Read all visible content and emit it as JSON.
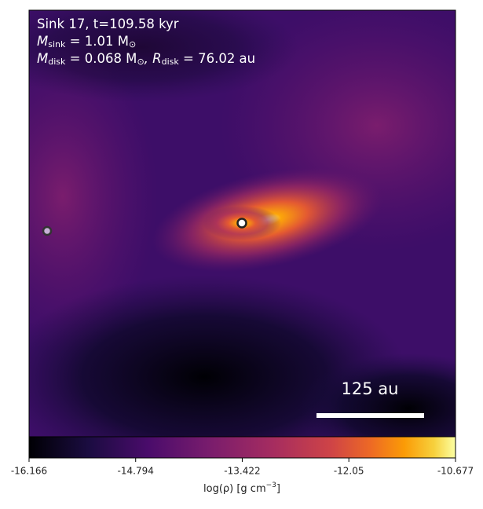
{
  "chart_data": {
    "type": "heatmap",
    "annotation_lines": [
      [
        "Sink 17, t=109.58 kyr"
      ],
      [
        "M",
        "sink",
        " = 1.01 M",
        "⊙"
      ],
      [
        "M",
        "disk",
        " = 0.068 M",
        "⊙",
        ", R",
        "disk",
        " = 76.02 au"
      ]
    ],
    "scale_bar_label": "125 au",
    "colorbar": {
      "label": [
        "log(ρ) [g cm",
        "−3",
        "]"
      ],
      "lim": [
        -16.166,
        -10.677
      ],
      "ticks": [
        -16.166,
        -14.794,
        -13.422,
        -12.05,
        -10.677
      ]
    }
  }
}
